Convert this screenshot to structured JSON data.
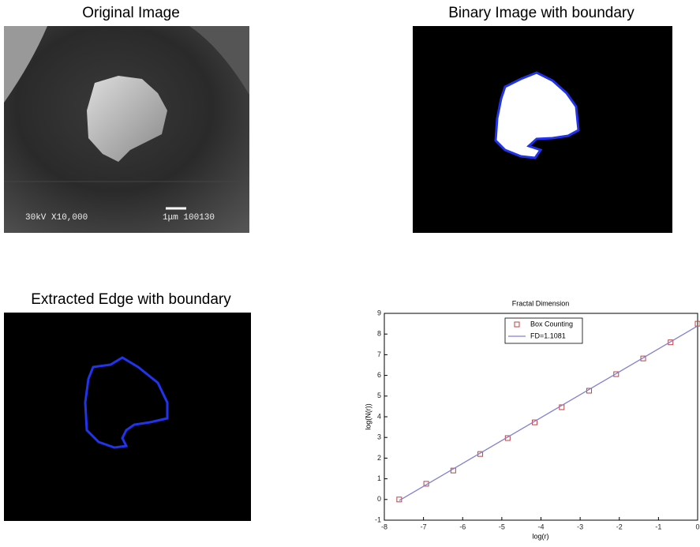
{
  "panels": [
    {
      "title": "Original Image",
      "overlay": [
        "30kV X10,000",
        "1μm 100130"
      ]
    },
    {
      "title": "Binary Image with boundary"
    },
    {
      "title": "Extracted Edge with boundary"
    }
  ],
  "chart_data": {
    "type": "scatter",
    "title": "Fractal Dimension",
    "x_label": "log(r)",
    "y_label": "log(N(r))",
    "series": [
      {
        "name": "Box Counting",
        "color": "#c04040",
        "mode": "marker",
        "x": [
          -7.62,
          -6.93,
          -6.24,
          -5.55,
          -4.85,
          -4.16,
          -3.47,
          -2.77,
          -2.08,
          -1.39,
          -0.69,
          0
        ],
        "values": [
          0,
          0.76,
          1.4,
          2.2,
          2.97,
          3.73,
          4.46,
          5.26,
          6.06,
          6.82,
          7.6,
          8.5
        ]
      },
      {
        "name": "FD=1.1081",
        "color": "#8080d0",
        "mode": "line",
        "x": [
          -7.62,
          0
        ],
        "values": [
          -0.05,
          8.39
        ]
      }
    ],
    "xlim": [
      -8,
      0
    ],
    "ylim": [
      -1,
      9
    ],
    "xticks": [
      -8,
      -7,
      -6,
      -5,
      -4,
      -3,
      -2,
      -1,
      0
    ],
    "yticks": [
      -1,
      0,
      1,
      2,
      3,
      4,
      5,
      6,
      7,
      8,
      9
    ],
    "legend": "top"
  }
}
